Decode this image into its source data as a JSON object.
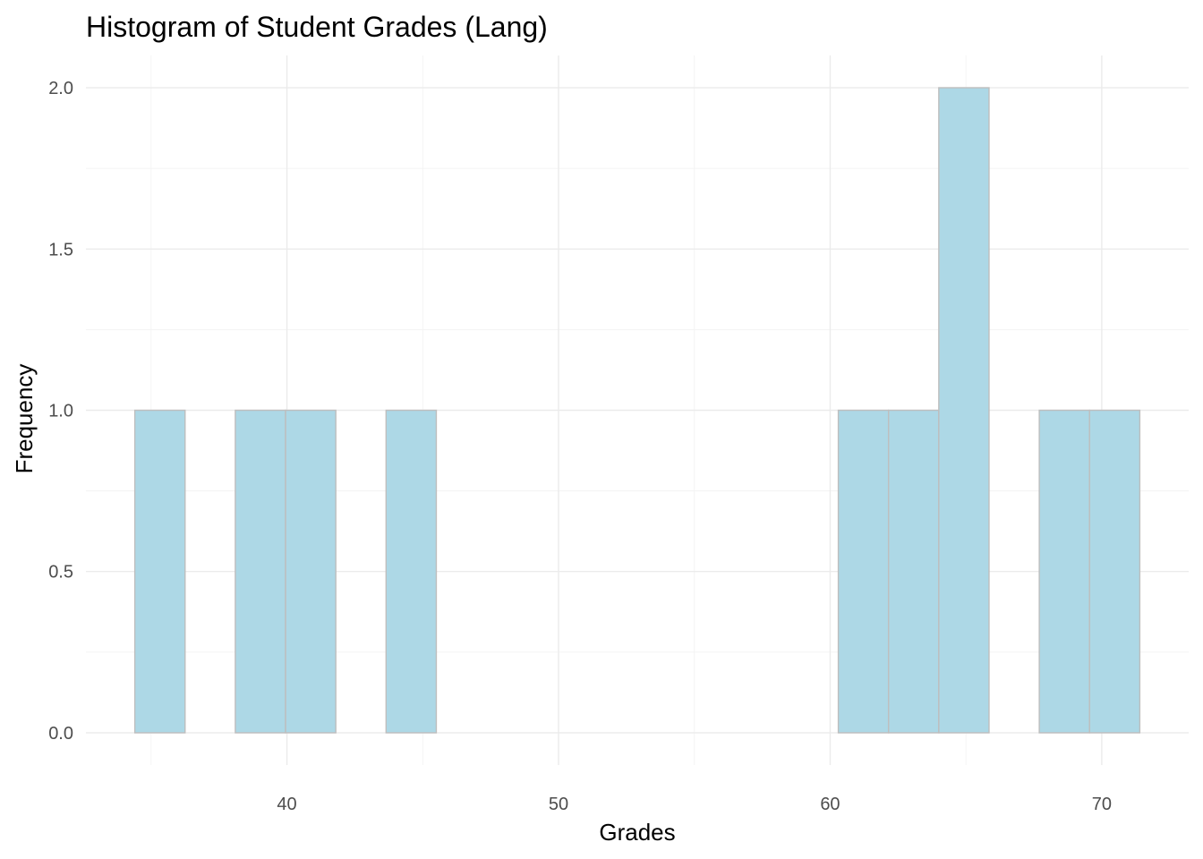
{
  "chart_data": {
    "type": "bar",
    "title": "Histogram of Student Grades (Lang)",
    "xlabel": "Grades",
    "ylabel": "Frequency",
    "bin_width": 1.85,
    "bins": [
      {
        "start": 34.4,
        "end": 36.25,
        "count": 1
      },
      {
        "start": 36.25,
        "end": 38.1,
        "count": 0
      },
      {
        "start": 38.1,
        "end": 39.95,
        "count": 1
      },
      {
        "start": 39.95,
        "end": 41.8,
        "count": 1
      },
      {
        "start": 41.8,
        "end": 43.65,
        "count": 0
      },
      {
        "start": 43.65,
        "end": 45.5,
        "count": 1
      },
      {
        "start": 45.5,
        "end": 47.35,
        "count": 0
      },
      {
        "start": 47.35,
        "end": 49.2,
        "count": 0
      },
      {
        "start": 49.2,
        "end": 51.05,
        "count": 0
      },
      {
        "start": 51.05,
        "end": 52.9,
        "count": 0
      },
      {
        "start": 52.9,
        "end": 54.75,
        "count": 0
      },
      {
        "start": 54.75,
        "end": 56.6,
        "count": 0
      },
      {
        "start": 56.6,
        "end": 58.45,
        "count": 0
      },
      {
        "start": 58.45,
        "end": 60.3,
        "count": 0
      },
      {
        "start": 60.3,
        "end": 62.15,
        "count": 1
      },
      {
        "start": 62.15,
        "end": 64.0,
        "count": 1
      },
      {
        "start": 64.0,
        "end": 65.85,
        "count": 2
      },
      {
        "start": 65.85,
        "end": 67.7,
        "count": 0
      },
      {
        "start": 67.7,
        "end": 69.55,
        "count": 1
      },
      {
        "start": 69.55,
        "end": 71.4,
        "count": 1
      }
    ],
    "xlim": [
      32.6,
      73.2
    ],
    "ylim": [
      -0.1,
      2.1
    ],
    "x_ticks": [
      40,
      50,
      60,
      70
    ],
    "x_tick_labels": [
      "40",
      "50",
      "60",
      "70"
    ],
    "y_ticks": [
      0,
      0.5,
      1,
      1.5,
      2
    ],
    "y_tick_labels": [
      "0.0",
      "0.5",
      "1.0",
      "1.5",
      "2.0"
    ],
    "grid": true,
    "legend": "none",
    "colors": {
      "bar_fill": "#add8e6",
      "bar_outline": "#bebebe",
      "grid": "#ebebeb",
      "tick_text": "#4d4d4d"
    }
  }
}
